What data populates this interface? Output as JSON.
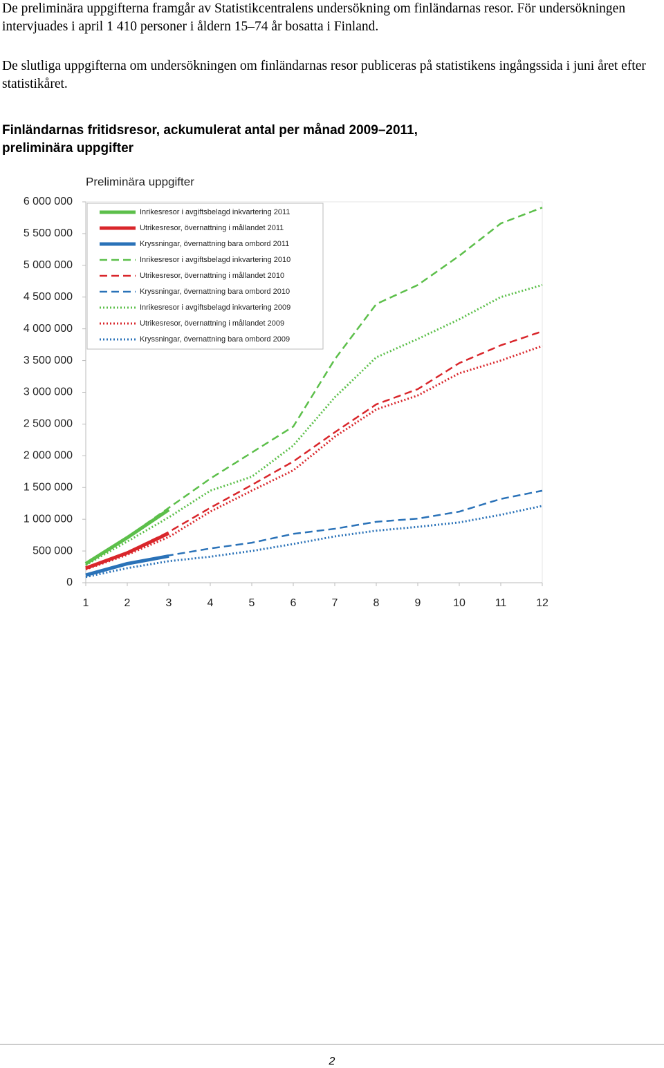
{
  "paragraphs": [
    "De preliminära uppgifterna framgår av Statistikcentralens undersökning om finländarnas resor. För undersökningen intervjuades i april 1 410 personer i åldern 15–74 år bosatta i Finland.",
    "De slutliga uppgifterna om undersökningen om finländarnas resor publiceras på statistikens ingångssida i juni året efter statistikåret."
  ],
  "heading": "Finländarnas fritidsresor, ackumulerat antal per månad 2009–2011, preliminära uppgifter",
  "page_number": "2",
  "chart_data": {
    "type": "line",
    "title": "Preliminära uppgifter",
    "x": [
      1,
      2,
      3,
      4,
      5,
      6,
      7,
      8,
      9,
      10,
      11,
      12
    ],
    "xlim": [
      1,
      12
    ],
    "xticks": [
      1,
      2,
      3,
      4,
      5,
      6,
      7,
      8,
      9,
      10,
      11,
      12
    ],
    "ylim": [
      0,
      6000000
    ],
    "yticks": [
      0,
      {
        "value": 500000,
        "label": "500 000"
      },
      {
        "value": 1000000,
        "label": "1 000 000"
      },
      {
        "value": 1500000,
        "label": "1 500 000"
      },
      {
        "value": 2000000,
        "label": "2 000 000"
      },
      {
        "value": 2500000,
        "label": "2 500 000"
      },
      {
        "value": 3000000,
        "label": "3 000 000"
      },
      {
        "value": 3500000,
        "label": "3 500 000"
      },
      {
        "value": 4000000,
        "label": "4 000 000"
      },
      {
        "value": 4500000,
        "label": "4 500 000"
      },
      {
        "value": 5000000,
        "label": "5 000 000"
      },
      {
        "value": 5500000,
        "label": "5 500 000"
      },
      {
        "value": 6000000,
        "label": "6 000 000"
      }
    ],
    "grid": false,
    "legend": "top-left",
    "series": [
      {
        "name": "Inrikesresor i avgiftsbelagd inkvartering 2011",
        "color": "#5cbf4a",
        "style": "solid",
        "values": [
          300000,
          710000,
          1150000,
          null,
          null,
          null,
          null,
          null,
          null,
          null,
          null,
          null
        ]
      },
      {
        "name": "Utrikesresor, övernattning i mållandet 2011",
        "color": "#d9262b",
        "style": "solid",
        "values": [
          230000,
          470000,
          780000,
          null,
          null,
          null,
          null,
          null,
          null,
          null,
          null,
          null
        ]
      },
      {
        "name": "Kryssningar, övernattning bara ombord 2011",
        "color": "#2a72b8",
        "style": "solid",
        "values": [
          120000,
          300000,
          420000,
          null,
          null,
          null,
          null,
          null,
          null,
          null,
          null,
          null
        ]
      },
      {
        "name": "Inrikesresor i avgiftsbelagd inkvartering 2010",
        "color": "#5cbf4a",
        "style": "dashed",
        "values": [
          310000,
          720000,
          1180000,
          1640000,
          2050000,
          2460000,
          3520000,
          4390000,
          4690000,
          5150000,
          5660000,
          5910000
        ]
      },
      {
        "name": "Utrikesresor, övernattning i mållandet 2010",
        "color": "#d9262b",
        "style": "dashed",
        "values": [
          240000,
          480000,
          800000,
          1180000,
          1540000,
          1910000,
          2370000,
          2810000,
          3050000,
          3460000,
          3740000,
          3960000
        ]
      },
      {
        "name": "Kryssningar, övernattning bara ombord 2010",
        "color": "#2a72b8",
        "style": "dashed",
        "values": [
          130000,
          310000,
          430000,
          540000,
          630000,
          770000,
          850000,
          960000,
          1010000,
          1120000,
          1320000,
          1450000
        ]
      },
      {
        "name": "Inrikesresor i avgiftsbelagd inkvartering 2009",
        "color": "#5cbf4a",
        "style": "dotted",
        "values": [
          280000,
          650000,
          1030000,
          1450000,
          1670000,
          2160000,
          2920000,
          3550000,
          3840000,
          4150000,
          4500000,
          4690000
        ]
      },
      {
        "name": "Utrikesresor, övernattning i mållandet 2009",
        "color": "#d9262b",
        "style": "dotted",
        "values": [
          210000,
          440000,
          720000,
          1120000,
          1450000,
          1770000,
          2300000,
          2730000,
          2950000,
          3300000,
          3500000,
          3730000
        ]
      },
      {
        "name": "Kryssningar, övernattning bara ombord 2009",
        "color": "#2a72b8",
        "style": "dotted",
        "values": [
          90000,
          230000,
          340000,
          410000,
          500000,
          610000,
          730000,
          820000,
          880000,
          950000,
          1070000,
          1210000
        ]
      }
    ]
  }
}
